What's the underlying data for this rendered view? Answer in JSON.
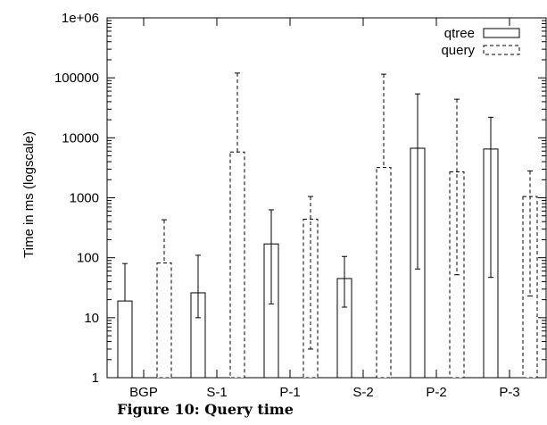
{
  "caption": "Figure 10: Query time",
  "chart_data": {
    "type": "bar",
    "log_scale_y": true,
    "ylabel": "Time in ms (logscale)",
    "ylim": [
      1,
      1000000
    ],
    "yticks": [
      {
        "value": 1,
        "label": "1"
      },
      {
        "value": 10,
        "label": "10"
      },
      {
        "value": 100,
        "label": "100"
      },
      {
        "value": 1000,
        "label": "1000"
      },
      {
        "value": 10000,
        "label": "10000"
      },
      {
        "value": 100000,
        "label": "100000"
      },
      {
        "value": 1000000,
        "label": "1e+06"
      }
    ],
    "categories": [
      "BGP",
      "S-1",
      "P-1",
      "S-2",
      "P-2",
      "P-3"
    ],
    "legend_position": "top-right",
    "grid": false,
    "series": [
      {
        "name": "qtree",
        "style": "solid",
        "values": [
          19,
          26,
          170,
          45,
          6700,
          6500
        ],
        "err_low": [
          null,
          10,
          17,
          15,
          65,
          47
        ],
        "err_high": [
          80,
          110,
          630,
          105,
          54000,
          22000
        ]
      },
      {
        "name": "query",
        "style": "dashed",
        "values": [
          82,
          5800,
          440,
          3200,
          2700,
          1050
        ],
        "err_low": [
          null,
          null,
          3,
          null,
          52,
          23
        ],
        "err_high": [
          430,
          120000,
          1050,
          115000,
          44000,
          2800
        ]
      }
    ]
  }
}
